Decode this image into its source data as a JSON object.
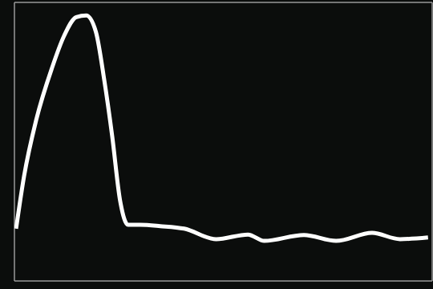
{
  "chart_data": {
    "type": "line",
    "x": [
      0.04,
      0.23,
      0.52,
      0.9,
      1.19,
      1.48,
      1.72,
      1.95,
      2.15,
      2.34,
      2.53,
      2.72,
      3.01,
      3.49,
      4.06,
      4.83,
      5.59,
      5.98,
      6.93,
      7.7,
      8.56,
      9.23,
      9.9
    ],
    "values": [
      1.24,
      2.48,
      3.81,
      5.05,
      5.81,
      6.25,
      6.29,
      5.9,
      4.76,
      3.43,
      1.9,
      1.33,
      1.33,
      1.3,
      1.24,
      0.99,
      1.1,
      0.95,
      1.09,
      0.95,
      1.14,
      0.99,
      1.03
    ],
    "color": "#ffffff",
    "xlim": [
      0,
      10
    ],
    "xticks": [
      0,
      1,
      2,
      3,
      4,
      5,
      6,
      7,
      8,
      9,
      10
    ],
    "ylim": [
      0,
      6.6
    ],
    "yticks": [
      0,
      1,
      2,
      3,
      4,
      5,
      6
    ],
    "grid": true,
    "tick_labels": false
  }
}
